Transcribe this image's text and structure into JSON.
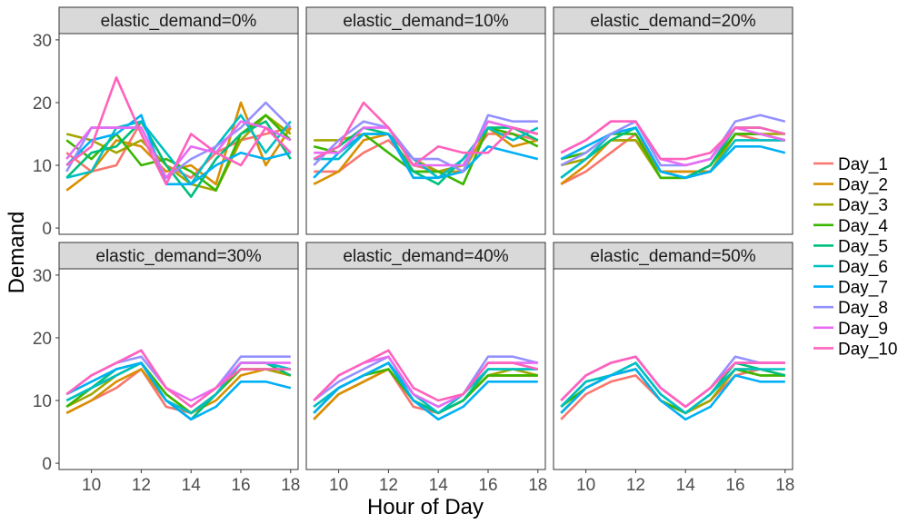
{
  "chart_data": {
    "type": "line",
    "xlabel": "Hour of Day",
    "ylabel": "Demand",
    "x": [
      9,
      10,
      11,
      12,
      13,
      14,
      15,
      16,
      17,
      18
    ],
    "xlim": [
      8.7,
      18.3
    ],
    "ylim": [
      -1,
      31
    ],
    "xticks": [
      10,
      12,
      14,
      16,
      18
    ],
    "yticks": [
      0,
      10,
      20,
      30
    ],
    "legend_position": "right",
    "series_names": [
      "Day_1",
      "Day_2",
      "Day_3",
      "Day_4",
      "Day_5",
      "Day_6",
      "Day_7",
      "Day_8",
      "Day_9",
      "Day_10"
    ],
    "colors": [
      "#F8766D",
      "#D89000",
      "#A3A500",
      "#39B600",
      "#00BF7D",
      "#00BFC4",
      "#00B0F6",
      "#9590FF",
      "#E76BF3",
      "#FF62BC"
    ],
    "panels": [
      {
        "label": "elastic_demand=0%",
        "series": [
          [
            12,
            9,
            10,
            17,
            10,
            8,
            12,
            14,
            15,
            16
          ],
          [
            6,
            9,
            14,
            13,
            9,
            10,
            7,
            20,
            10,
            16
          ],
          [
            15,
            14,
            12,
            14,
            10,
            7,
            6,
            14,
            18,
            15
          ],
          [
            14,
            11,
            15,
            10,
            11,
            9,
            6,
            15,
            18,
            14
          ],
          [
            8,
            12,
            13,
            17,
            10,
            5,
            11,
            15,
            17,
            11
          ],
          [
            8,
            9,
            16,
            17,
            12,
            7,
            13,
            18,
            12,
            17
          ],
          [
            10,
            14,
            15,
            18,
            7,
            7,
            10,
            12,
            11,
            12
          ],
          [
            9,
            16,
            16,
            16,
            8,
            11,
            13,
            16,
            20,
            16
          ],
          [
            11,
            16,
            16,
            16,
            8,
            13,
            12,
            17,
            16,
            14
          ],
          [
            10,
            13,
            24,
            15,
            7,
            15,
            12,
            10,
            16,
            12
          ]
        ]
      },
      {
        "label": "elastic_demand=10%",
        "series": [
          [
            9,
            9,
            12,
            14,
            10,
            9,
            10,
            15,
            15,
            14
          ],
          [
            7,
            9,
            14,
            15,
            9,
            9,
            9,
            16,
            13,
            14
          ],
          [
            14,
            14,
            15,
            15,
            11,
            9,
            10,
            17,
            16,
            15
          ],
          [
            13,
            12,
            15,
            12,
            9,
            9,
            7,
            16,
            15,
            13
          ],
          [
            11,
            13,
            16,
            15,
            9,
            7,
            11,
            16,
            16,
            14
          ],
          [
            11,
            11,
            15,
            15,
            11,
            8,
            11,
            16,
            14,
            16
          ],
          [
            8,
            12,
            15,
            15,
            8,
            8,
            9,
            13,
            12,
            11
          ],
          [
            10,
            14,
            17,
            16,
            11,
            11,
            9,
            18,
            17,
            17
          ],
          [
            12,
            12,
            16,
            16,
            10,
            10,
            10,
            17,
            16,
            15
          ],
          [
            11,
            13,
            20,
            16,
            10,
            13,
            12,
            12,
            16,
            15
          ]
        ]
      },
      {
        "label": "elastic_demand=20%",
        "series": [
          [
            7,
            9,
            12,
            15,
            9,
            9,
            9,
            15,
            14,
            14
          ],
          [
            7,
            10,
            14,
            14,
            9,
            9,
            9,
            15,
            15,
            14
          ],
          [
            10,
            11,
            14,
            14,
            8,
            8,
            9,
            15,
            15,
            15
          ],
          [
            11,
            12,
            15,
            15,
            8,
            8,
            10,
            15,
            15,
            14
          ],
          [
            8,
            11,
            14,
            16,
            9,
            8,
            10,
            16,
            16,
            15
          ],
          [
            8,
            11,
            15,
            16,
            9,
            8,
            9,
            14,
            14,
            14
          ],
          [
            11,
            13,
            15,
            16,
            9,
            8,
            9,
            13,
            13,
            12
          ],
          [
            10,
            12,
            15,
            17,
            10,
            10,
            11,
            17,
            18,
            17
          ],
          [
            12,
            14,
            17,
            17,
            11,
            10,
            11,
            16,
            15,
            14
          ],
          [
            12,
            14,
            17,
            17,
            11,
            11,
            12,
            16,
            16,
            15
          ]
        ]
      },
      {
        "label": "elastic_demand=30%",
        "series": [
          [
            8,
            10,
            12,
            15,
            9,
            8,
            11,
            15,
            15,
            14
          ],
          [
            8,
            10,
            13,
            15,
            10,
            8,
            10,
            14,
            15,
            14
          ],
          [
            9,
            11,
            14,
            16,
            11,
            8,
            11,
            15,
            15,
            14
          ],
          [
            9,
            12,
            14,
            16,
            11,
            8,
            11,
            15,
            15,
            15
          ],
          [
            10,
            12,
            15,
            16,
            10,
            7,
            11,
            16,
            16,
            14
          ],
          [
            10,
            12,
            14,
            16,
            10,
            8,
            11,
            16,
            16,
            15
          ],
          [
            11,
            13,
            15,
            16,
            10,
            7,
            9,
            13,
            13,
            12
          ],
          [
            11,
            14,
            16,
            17,
            12,
            9,
            12,
            17,
            17,
            17
          ],
          [
            11,
            14,
            16,
            18,
            12,
            10,
            12,
            16,
            16,
            16
          ],
          [
            11,
            14,
            16,
            18,
            12,
            9,
            12,
            15,
            15,
            15
          ]
        ]
      },
      {
        "label": "elastic_demand=40%",
        "series": [
          [
            7,
            11,
            13,
            15,
            9,
            8,
            10,
            14,
            14,
            14
          ],
          [
            7,
            11,
            13,
            15,
            10,
            8,
            10,
            14,
            14,
            14
          ],
          [
            8,
            12,
            14,
            16,
            10,
            8,
            10,
            14,
            15,
            14
          ],
          [
            8,
            12,
            14,
            15,
            10,
            8,
            10,
            14,
            14,
            14
          ],
          [
            9,
            12,
            14,
            16,
            10,
            8,
            10,
            15,
            15,
            15
          ],
          [
            9,
            12,
            14,
            16,
            11,
            8,
            11,
            15,
            15,
            15
          ],
          [
            8,
            12,
            14,
            16,
            10,
            7,
            9,
            13,
            13,
            13
          ],
          [
            10,
            13,
            15,
            17,
            11,
            9,
            11,
            17,
            17,
            16
          ],
          [
            10,
            14,
            16,
            17,
            11,
            9,
            11,
            16,
            16,
            16
          ],
          [
            10,
            14,
            16,
            18,
            12,
            10,
            11,
            16,
            16,
            15
          ]
        ]
      },
      {
        "label": "elastic_demand=50%",
        "series": [
          [
            7,
            11,
            13,
            14,
            10,
            8,
            10,
            14,
            15,
            14
          ],
          [
            8,
            12,
            14,
            15,
            10,
            8,
            10,
            15,
            15,
            14
          ],
          [
            8,
            12,
            14,
            15,
            10,
            8,
            10,
            15,
            14,
            14
          ],
          [
            9,
            12,
            14,
            15,
            10,
            8,
            11,
            15,
            14,
            14
          ],
          [
            9,
            13,
            14,
            16,
            11,
            8,
            11,
            16,
            15,
            14
          ],
          [
            9,
            13,
            14,
            16,
            11,
            8,
            11,
            15,
            15,
            15
          ],
          [
            8,
            12,
            14,
            15,
            10,
            7,
            9,
            14,
            13,
            13
          ],
          [
            10,
            14,
            16,
            17,
            12,
            9,
            12,
            17,
            16,
            16
          ],
          [
            10,
            14,
            16,
            17,
            12,
            9,
            12,
            16,
            16,
            16
          ],
          [
            10,
            14,
            16,
            17,
            12,
            9,
            12,
            16,
            16,
            16
          ]
        ]
      }
    ]
  }
}
